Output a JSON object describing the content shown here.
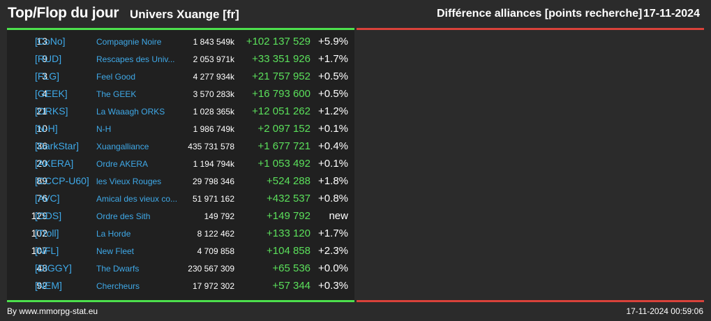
{
  "header": {
    "title": "Top/Flop du jour",
    "universe": "Univers Xuange [fr]",
    "category": "Différence alliances [points recherche]",
    "date": "17-11-2024"
  },
  "colors": {
    "background": "#2b2b2b",
    "panel": "#202020",
    "top_bar": "#4de04d",
    "flop_bar": "#d9423a",
    "link": "#3fa9e8",
    "positive": "#5be05b"
  },
  "rows": [
    {
      "rank": "13",
      "tag": "[CoNo]",
      "name": "Compagnie Noire",
      "points": "1 843 549k",
      "diff": "+102 137 529",
      "pct": "+5.9%"
    },
    {
      "rank": "9",
      "tag": "[RUD]",
      "name": "Rescapes des Univ...",
      "points": "2 053 971k",
      "diff": "+33 351 926",
      "pct": "+1.7%"
    },
    {
      "rank": "3",
      "tag": "[FLG]",
      "name": "Feel Good",
      "points": "4 277 934k",
      "diff": "+21 757 952",
      "pct": "+0.5%"
    },
    {
      "rank": "4",
      "tag": "[GEEK]",
      "name": "The GEEK",
      "points": "3 570 283k",
      "diff": "+16 793 600",
      "pct": "+0.5%"
    },
    {
      "rank": "21",
      "tag": "[ORKS]",
      "name": "La Waaagh ORKS",
      "points": "1 028 365k",
      "diff": "+12 051 262",
      "pct": "+1.2%"
    },
    {
      "rank": "10",
      "tag": "[N-H]",
      "name": "N-H",
      "points": "1 986 749k",
      "diff": "+2 097 152",
      "pct": "+0.1%"
    },
    {
      "rank": "36",
      "tag": "[DarkStar]",
      "name": "Xuangalliance",
      "points": "435 731 578",
      "diff": "+1 677 721",
      "pct": "+0.4%"
    },
    {
      "rank": "20",
      "tag": "[AKERA]",
      "name": "Ordre AKERA",
      "points": "1 194 794k",
      "diff": "+1 053 492",
      "pct": "+0.1%"
    },
    {
      "rank": "89",
      "tag": "[CCCP-U60]",
      "name": "les Vieux Rouges",
      "points": "29 798 346",
      "diff": "+524 288",
      "pct": "+1.8%"
    },
    {
      "rank": "76",
      "tag": "[AVC]",
      "name": "Amical des vieux co...",
      "points": "51 971 162",
      "diff": "+432 537",
      "pct": "+0.8%"
    },
    {
      "rank": "129",
      "tag": "[ODS]",
      "name": "Ordre des Sith",
      "points": "149 792",
      "diff": "+149 792",
      "pct": "new"
    },
    {
      "rank": "102",
      "tag": "[Troll]",
      "name": "La Horde",
      "points": "8 122 462",
      "diff": "+133 120",
      "pct": "+1.7%"
    },
    {
      "rank": "107",
      "tag": "[NFL]",
      "name": "New Fleet",
      "points": "4 709 858",
      "diff": "+104 858",
      "pct": "+2.3%"
    },
    {
      "rank": "48",
      "tag": "[DIGGY]",
      "name": "The Dwarfs",
      "points": "230 567 309",
      "diff": "+65 536",
      "pct": "+0.0%"
    },
    {
      "rank": "92",
      "tag": "[NEM]",
      "name": "Chercheurs",
      "points": "17 972 302",
      "diff": "+57 344",
      "pct": "+0.3%"
    }
  ],
  "footer": {
    "credit": "By www.mmorpg-stat.eu",
    "timestamp": "17-11-2024 00:59:06"
  }
}
